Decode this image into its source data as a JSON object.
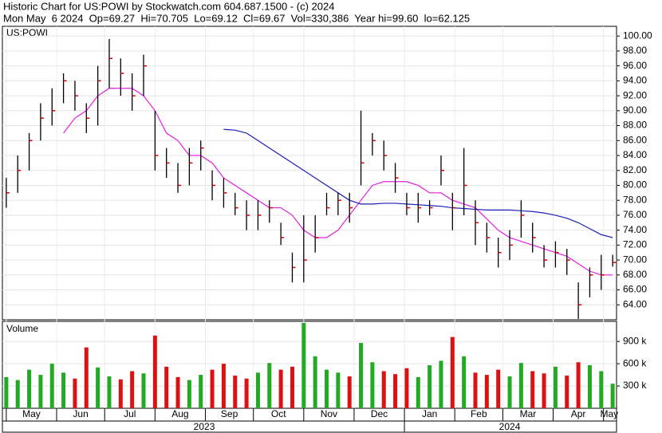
{
  "chart_data": {
    "type": "ohlc",
    "title": "Historic Chart for US:POWI by Stockwatch.com 604.687.1500 - (c) 2024",
    "subtitle": "Mon May  6 2024  Op=69.27  Hi=70.705  Lo=69.12  Cl=69.67  Vol=330,386  Year hi=99.60  lo=62.125",
    "label": "US:POWI",
    "bar_color": "#000000",
    "close_color": "#cc0000",
    "grid": true,
    "high": [
      81,
      84,
      87,
      91,
      93,
      95,
      94,
      91,
      96,
      99.6,
      97,
      95,
      97.5,
      90,
      85,
      83,
      85,
      86,
      82,
      81,
      79,
      78,
      78,
      78,
      75,
      71,
      76,
      76,
      79,
      79,
      79,
      90,
      87,
      86,
      83,
      79,
      79,
      78,
      84,
      79,
      85,
      78,
      75,
      73,
      74,
      78,
      75,
      72,
      72.5,
      71.5,
      67,
      69,
      70.7,
      70.705
    ],
    "low": [
      77,
      79,
      82,
      86,
      88,
      91,
      90,
      87,
      88,
      93,
      92,
      90,
      92,
      82,
      81,
      79,
      80,
      82,
      78,
      77,
      76,
      74,
      74,
      75,
      72,
      67,
      67,
      71,
      76,
      76,
      75,
      80,
      84,
      82,
      79,
      76,
      75,
      76,
      80,
      74,
      76,
      72,
      71,
      69,
      70,
      73,
      71,
      69,
      69,
      68,
      62.125,
      65,
      66,
      69.12
    ],
    "close": [
      79,
      82,
      86,
      89,
      90,
      94,
      92,
      89,
      94,
      97,
      95,
      92,
      96,
      84,
      83,
      80,
      83,
      85,
      80,
      79,
      77,
      76,
      76,
      77,
      73,
      69,
      70,
      73,
      77,
      78,
      77,
      83,
      86,
      84,
      81,
      77,
      77,
      77,
      82,
      77,
      80,
      75,
      73,
      71,
      72,
      76,
      73,
      70,
      71,
      70,
      64,
      68,
      68,
      69.67
    ],
    "moving_averages": [
      {
        "color": "#e020e0",
        "values": [
          null,
          null,
          null,
          null,
          null,
          87,
          89,
          90,
          92,
          93,
          93,
          93,
          92,
          90,
          87,
          86,
          84,
          84,
          83,
          81,
          80,
          79,
          78,
          77,
          77,
          76,
          74,
          73,
          73,
          74,
          76,
          78,
          80,
          80.5,
          80.5,
          80.5,
          80,
          79,
          79,
          78,
          77.5,
          77,
          75.5,
          74,
          73,
          72.5,
          72,
          71.5,
          71,
          70.5,
          69.5,
          68.5,
          68,
          68
        ]
      },
      {
        "color": "#1c1cb8",
        "values": [
          null,
          null,
          null,
          null,
          null,
          null,
          null,
          null,
          null,
          null,
          null,
          null,
          null,
          null,
          null,
          null,
          null,
          null,
          null,
          87.5,
          87.4,
          87,
          86,
          85,
          84,
          83,
          82,
          81,
          80,
          79,
          78,
          77.5,
          77.5,
          77.6,
          77.6,
          77.5,
          77.4,
          77.3,
          77.2,
          77,
          76.9,
          76.8,
          76.7,
          76.7,
          76.7,
          76.6,
          76.5,
          76.3,
          76,
          75.6,
          75,
          74.2,
          73.4,
          73
        ]
      }
    ],
    "xlim": [
      -0.2,
      53.2
    ],
    "ylim": [
      62,
      101.3
    ],
    "yticks": [
      {
        "value": 64,
        "label": "64.00"
      },
      {
        "value": 66,
        "label": "66.00"
      },
      {
        "value": 68,
        "label": "68.00"
      },
      {
        "value": 70,
        "label": "70.00"
      },
      {
        "value": 72,
        "label": "72.00"
      },
      {
        "value": 74,
        "label": "74.00"
      },
      {
        "value": 76,
        "label": "76.00"
      },
      {
        "value": 78,
        "label": "78.00"
      },
      {
        "value": 80,
        "label": "80.00"
      },
      {
        "value": 82,
        "label": "82.00"
      },
      {
        "value": 84,
        "label": "84.00"
      },
      {
        "value": 86,
        "label": "86.00"
      },
      {
        "value": 88,
        "label": "88.00"
      },
      {
        "value": 90,
        "label": "90.00"
      },
      {
        "value": 92,
        "label": "92.00"
      },
      {
        "value": 94,
        "label": "94.00"
      },
      {
        "value": 96,
        "label": "96.00"
      },
      {
        "value": 98,
        "label": "98.00"
      },
      {
        "value": 100,
        "label": "100.00"
      }
    ],
    "xticks": [
      {
        "value": 0,
        "label": "May"
      },
      {
        "value": 4.4,
        "label": "Jun"
      },
      {
        "value": 8.6,
        "label": "Jul"
      },
      {
        "value": 13,
        "label": "Aug"
      },
      {
        "value": 17.4,
        "label": "Sep"
      },
      {
        "value": 21.6,
        "label": "Oct"
      },
      {
        "value": 26,
        "label": "Nov"
      },
      {
        "value": 30.4,
        "label": "Dec"
      },
      {
        "value": 34.8,
        "label": "Jan"
      },
      {
        "value": 39.2,
        "label": "Feb"
      },
      {
        "value": 43.4,
        "label": "Mar"
      },
      {
        "value": 47.8,
        "label": "Apr"
      },
      {
        "value": 52.2,
        "label": "May"
      }
    ],
    "years": [
      {
        "value": 34.8,
        "label": "2023"
      },
      {
        "value": 53.2,
        "label": "2024"
      }
    ],
    "volume": {
      "label": "Volume",
      "up_color": "#22aa22",
      "down_color": "#dd1111",
      "values": [
        420000,
        380000,
        520000,
        450000,
        600000,
        480000,
        400000,
        820000,
        550000,
        430000,
        390000,
        500000,
        470000,
        980000,
        560000,
        420000,
        380000,
        450000,
        520000,
        600000,
        440000,
        400000,
        480000,
        610000,
        520000,
        560000,
        1150000,
        700000,
        520000,
        480000,
        430000,
        880000,
        620000,
        500000,
        460000,
        540000,
        420000,
        580000,
        640000,
        960000,
        700000,
        480000,
        450000,
        520000,
        430000,
        610000,
        500000,
        470000,
        560000,
        440000,
        620000,
        580000,
        500000,
        330386
      ],
      "ylim": [
        0,
        1160000
      ],
      "yticks": [
        {
          "value": 300000,
          "label": "300 k"
        },
        {
          "value": 600000,
          "label": "600 k"
        },
        {
          "value": 900000,
          "label": "900 k"
        }
      ]
    }
  }
}
